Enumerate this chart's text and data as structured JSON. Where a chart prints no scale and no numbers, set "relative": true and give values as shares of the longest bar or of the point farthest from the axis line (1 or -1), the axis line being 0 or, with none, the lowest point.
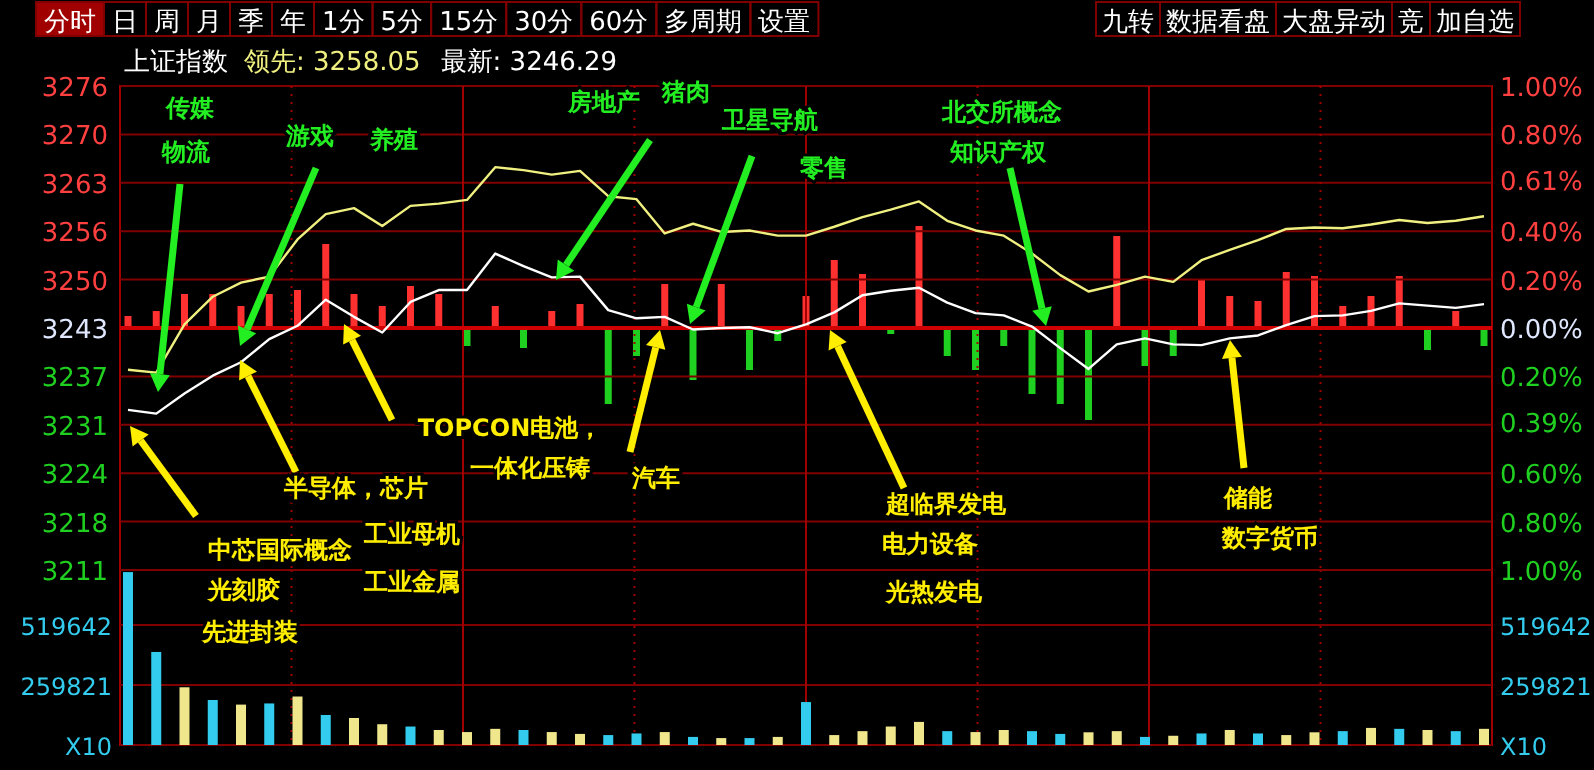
{
  "chart_data": [
    {
      "type": "other",
      "annotations": [
        "分时",
        "日",
        "周",
        "月",
        "季",
        "年",
        "1分",
        "5分",
        "15分",
        "30分",
        "60分",
        "多周期",
        "设置",
        "九转",
        "数据看盘",
        "大盘异动",
        "竞",
        "加自选"
      ]
    },
    {
      "type": "line",
      "title": "上证指数",
      "grid": true,
      "tick_labels": "y",
      "categories": [
        null,
        null,
        null,
        null,
        null,
        null,
        null,
        null,
        null,
        null,
        null,
        null,
        null,
        null,
        null,
        null,
        null,
        null,
        null,
        null,
        null,
        null,
        null,
        null,
        null,
        null,
        null,
        null,
        null,
        null,
        null,
        null,
        null,
        null,
        null,
        null,
        null,
        null,
        null,
        null,
        null,
        null,
        null,
        null,
        null,
        null,
        null,
        null,
        null
      ],
      "ylim": [
        3211,
        3276
      ],
      "yticks": [
        {
          "value": 3211,
          "label": "3211"
        },
        {
          "value": 3217.5,
          "label": "3218"
        },
        {
          "value": 3224,
          "label": "3224"
        },
        {
          "value": 3230.5,
          "label": "3231"
        },
        {
          "value": 3237,
          "label": "3237"
        },
        {
          "value": 3243.5,
          "label": "3243"
        },
        {
          "value": 3250,
          "label": "3250"
        },
        {
          "value": 3256.5,
          "label": "3256"
        },
        {
          "value": 3263,
          "label": "3263"
        },
        {
          "value": 3269.5,
          "label": "3270"
        },
        {
          "value": 3276,
          "label": "3276"
        }
      ],
      "y2lim": [
        -1,
        1
      ],
      "y2ticks": [
        {
          "value": -1,
          "label": "1.00%"
        },
        {
          "value": -0.8,
          "label": "0.80%"
        },
        {
          "value": -0.6,
          "label": "0.60%"
        },
        {
          "value": -0.39,
          "label": "0.39%"
        },
        {
          "value": -0.2,
          "label": "0.20%"
        },
        {
          "value": 0,
          "label": "0.00%"
        },
        {
          "value": 0.2,
          "label": "0.20%"
        },
        {
          "value": 0.4,
          "label": "0.40%"
        },
        {
          "value": 0.61,
          "label": "0.61%"
        },
        {
          "value": 0.8,
          "label": "0.80%"
        },
        {
          "value": 1,
          "label": "1.00%"
        }
      ],
      "ref_lines": [
        {
          "axis": "y",
          "value": 3243.5,
          "color": "#d00000"
        }
      ],
      "series": [
        {
          "name": "领先: 3258.05",
          "color": "#f0f080",
          "values": [
            3237.9,
            3237.5,
            3244.0,
            3247.7,
            3249.6,
            3250.4,
            3255.4,
            3258.8,
            3259.6,
            3257.2,
            3259.9,
            3260.2,
            3260.7,
            3265.1,
            3264.7,
            3264.1,
            3264.6,
            3261.2,
            3260.8,
            3256.2,
            3257.5,
            3256.4,
            3256.6,
            3255.9,
            3255.9,
            3257.1,
            3258.4,
            3259.4,
            3260.5,
            3257.9,
            3256.6,
            3255.9,
            3253.5,
            3250.6,
            3248.4,
            3249.3,
            3250.4,
            3249.7,
            3252.6,
            3254.0,
            3255.3,
            3256.8,
            3257.0,
            3256.9,
            3257.4,
            3258.0,
            3257.6,
            3257.9,
            3258.5
          ]
        },
        {
          "name": "最新: 3246.29",
          "color": "#ffffff",
          "values": [
            3232.5,
            3232.0,
            3234.7,
            3237.1,
            3238.9,
            3242.0,
            3243.8,
            3247.3,
            3245.0,
            3242.9,
            3247.0,
            3248.6,
            3248.6,
            3253.5,
            3251.8,
            3250.3,
            3250.4,
            3245.9,
            3244.8,
            3245.0,
            3243.3,
            3243.5,
            3243.6,
            3242.8,
            3244.0,
            3245.6,
            3247.9,
            3248.5,
            3248.9,
            3246.9,
            3245.5,
            3245.2,
            3243.7,
            3240.8,
            3238.0,
            3241.3,
            3242.1,
            3241.3,
            3241.2,
            3242.1,
            3242.5,
            3243.9,
            3245.1,
            3245.2,
            3245.8,
            3246.8,
            3246.5,
            3246.2,
            3246.7
          ]
        }
      ],
      "annotations": [
        "传媒",
        "物流",
        "游戏",
        "养殖",
        "房地产",
        "猪肉",
        "卫星导航",
        "零售",
        "北交所概念",
        "知识产权",
        "中芯国际概念",
        "光刻胶",
        "先进封装",
        "半导体，芯片",
        "工业母机",
        "工业金属",
        "TOPCON电池，",
        "一体化压铸",
        "汽车",
        "超临界发电",
        "电力设备",
        "光热发电",
        "储能",
        "数字货币"
      ]
    },
    {
      "type": "bar",
      "relative": true,
      "categories": [
        null,
        null,
        null,
        null,
        null,
        null,
        null,
        null,
        null,
        null,
        null,
        null,
        null,
        null,
        null,
        null,
        null,
        null,
        null,
        null,
        null,
        null,
        null,
        null,
        null,
        null,
        null,
        null,
        null,
        null,
        null,
        null,
        null,
        null,
        null,
        null,
        null,
        null,
        null,
        null,
        null,
        null,
        null,
        null,
        null,
        null,
        null,
        null,
        null
      ],
      "values": [
        0.1,
        0.15,
        0.32,
        0.32,
        0.2,
        0.32,
        0.36,
        0.82,
        0.32,
        0.2,
        0.4,
        0.32,
        -0.2,
        0.2,
        -0.22,
        0.15,
        0.22,
        -0.78,
        -0.3,
        0.42,
        -0.54,
        0.42,
        -0.44,
        -0.15,
        0.3,
        0.66,
        0.52,
        -0.08,
        1,
        -0.3,
        -0.44,
        -0.2,
        -0.68,
        -0.78,
        -0.94,
        0.9,
        -0.4,
        -0.3,
        0.46,
        0.3,
        0.25,
        0.54,
        0.5,
        0.2,
        0.3,
        0.5,
        -0.24,
        0.15,
        -0.2
      ],
      "colors": [
        "#ff3030",
        "#ff3030",
        "#ff3030",
        "#ff3030",
        "#ff3030",
        "#ff3030",
        "#ff3030",
        "#ff3030",
        "#ff3030",
        "#ff3030",
        "#ff3030",
        "#ff3030",
        "#20d020",
        "#ff3030",
        "#20d020",
        "#ff3030",
        "#ff3030",
        "#20d020",
        "#20d020",
        "#ff3030",
        "#20d020",
        "#ff3030",
        "#20d020",
        "#20d020",
        "#ff3030",
        "#ff3030",
        "#ff3030",
        "#20d020",
        "#ff3030",
        "#20d020",
        "#20d020",
        "#20d020",
        "#20d020",
        "#20d020",
        "#20d020",
        "#ff3030",
        "#20d020",
        "#20d020",
        "#ff3030",
        "#ff3030",
        "#ff3030",
        "#ff3030",
        "#ff3030",
        "#ff3030",
        "#ff3030",
        "#ff3030",
        "#20d020",
        "#ff3030",
        "#20d020"
      ]
    },
    {
      "type": "bar",
      "tick_labels": "y",
      "grid": true,
      "categories": [
        null,
        null,
        null,
        null,
        null,
        null,
        null,
        null,
        null,
        null,
        null,
        null,
        null,
        null,
        null,
        null,
        null,
        null,
        null,
        null,
        null,
        null,
        null,
        null,
        null,
        null,
        null,
        null,
        null,
        null,
        null,
        null,
        null,
        null,
        null,
        null,
        null,
        null,
        null,
        null,
        null,
        null,
        null,
        null,
        null,
        null,
        null,
        null,
        null
      ],
      "ylim": [
        0,
        758000
      ],
      "yticks": [
        {
          "value": 0,
          "label": "X10"
        },
        259821,
        519642
      ],
      "y2lim": [
        0,
        758000
      ],
      "y2ticks": [
        {
          "value": 0,
          "label": "X10"
        },
        259821,
        519642
      ],
      "values": [
        749000,
        403000,
        250000,
        195000,
        175000,
        180000,
        210000,
        130000,
        117000,
        90000,
        80000,
        65000,
        56000,
        70000,
        65000,
        56000,
        48000,
        43000,
        50000,
        56000,
        35000,
        30000,
        30000,
        35000,
        186000,
        43000,
        60000,
        80000,
        100000,
        60000,
        56000,
        65000,
        60000,
        48000,
        55000,
        60000,
        35000,
        40000,
        50000,
        65000,
        50000,
        43000,
        55000,
        60000,
        74000,
        70000,
        65000,
        60000,
        70000
      ],
      "colors": [
        "#33ccee",
        "#33ccee",
        "#f0e68c",
        "#33ccee",
        "#f0e68c",
        "#33ccee",
        "#f0e68c",
        "#33ccee",
        "#f0e68c",
        "#f0e68c",
        "#33ccee",
        "#f0e68c",
        "#f0e68c",
        "#f0e68c",
        "#33ccee",
        "#f0e68c",
        "#f0e68c",
        "#33ccee",
        "#33ccee",
        "#f0e68c",
        "#33ccee",
        "#f0e68c",
        "#33ccee",
        "#f0e68c",
        "#33ccee",
        "#f0e68c",
        "#f0e68c",
        "#f0e68c",
        "#f0e68c",
        "#33ccee",
        "#f0e68c",
        "#f0e68c",
        "#33ccee",
        "#33ccee",
        "#f0e68c",
        "#f0e68c",
        "#33ccee",
        "#f0e68c",
        "#33ccee",
        "#f0e68c",
        "#33ccee",
        "#f0e68c",
        "#f0e68c",
        "#33ccee",
        "#f0e68c",
        "#33ccee",
        "#f0e68c",
        "#33ccee",
        "#f0e68c"
      ]
    }
  ]
}
